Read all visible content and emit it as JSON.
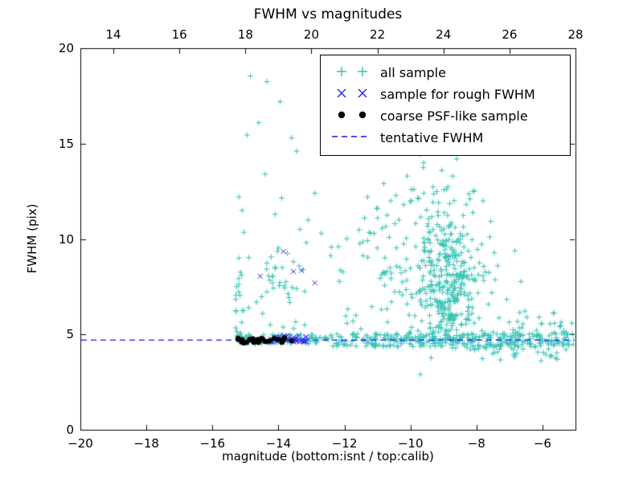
{
  "chart_data": {
    "type": "scatter",
    "title": "FWHM vs magnitudes",
    "xlabel": "magnitude (bottom:isnt / top:calib)",
    "ylabel": "FWHM (pix)",
    "xlim": [
      -20,
      -5
    ],
    "ylim": [
      0,
      20
    ],
    "x_ticks": [
      -20,
      -18,
      -16,
      -14,
      -12,
      -10,
      -8,
      -6
    ],
    "y_ticks": [
      0,
      5,
      10,
      15,
      20
    ],
    "top_axis": {
      "lim": [
        13,
        28
      ],
      "ticks": [
        14,
        16,
        18,
        20,
        22,
        24,
        26,
        28
      ]
    },
    "grid": false,
    "legend_position": "upper-right",
    "tentative_fwhm": 4.7,
    "colors": {
      "all_sample": "#35c2b4",
      "rough_fwhm": "#2222ee",
      "psf_like": "#000000",
      "tentative_line": "#1515ee",
      "axes": "#000000"
    },
    "legend": [
      {
        "label": "all sample",
        "marker": "plus",
        "color": "#35c2b4"
      },
      {
        "label": "sample for rough FWHM",
        "marker": "x",
        "color": "#2222ee"
      },
      {
        "label": "coarse PSF-like sample",
        "marker": "dot",
        "color": "#000000"
      },
      {
        "label": "tentative FWHM",
        "marker": "dashed-line",
        "color": "#1515ee"
      }
    ],
    "series": [
      {
        "name": "all sample",
        "marker": "plus",
        "color": "#35c2b4",
        "clusters": [
          {
            "kind": "band",
            "x": [
              -15.3,
              -15.05
            ],
            "y": [
              4.6,
              8.4
            ],
            "n": 22,
            "seed": 101
          },
          {
            "kind": "gauss",
            "cx": -13.9,
            "cy": 7.3,
            "sx": 0.55,
            "sy": 1.5,
            "n": 42,
            "ymin": 5.0,
            "seed": 102
          },
          {
            "kind": "band",
            "x": [
              -15.25,
              -12.45
            ],
            "y": [
              4.5,
              5.0
            ],
            "n": 75,
            "seed": 103
          },
          {
            "kind": "band",
            "x": [
              -12.5,
              -5.05
            ],
            "y": [
              4.35,
              5.05
            ],
            "n": 250,
            "seed": 104
          },
          {
            "kind": "gauss",
            "cx": -7.2,
            "cy": 4.7,
            "sx": 1.15,
            "sy": 0.5,
            "n": 90,
            "ymin": 3.3,
            "ymax": 6.6,
            "seed": 105
          },
          {
            "kind": "gauss",
            "cx": -8.85,
            "cy": 7.6,
            "sx": 0.5,
            "sy": 2.1,
            "n": 300,
            "ymin": 4.6,
            "xmax": -5.2,
            "seed": 106
          },
          {
            "kind": "gauss",
            "cx": -9.2,
            "cy": 9.0,
            "sx": 1.0,
            "sy": 2.5,
            "n": 110,
            "ymin": 4.7,
            "seed": 107
          },
          {
            "kind": "band",
            "x": [
              -11.1,
              -9.9
            ],
            "y": [
              4.9,
              13.2
            ],
            "n": 26,
            "seed": 108
          },
          {
            "kind": "band",
            "x": [
              -12.5,
              -11.1
            ],
            "y": [
              5.0,
              11.5
            ],
            "n": 18,
            "seed": 109
          },
          {
            "kind": "band",
            "x": [
              -7.0,
              -5.1
            ],
            "y": [
              3.6,
              6.3
            ],
            "n": 30,
            "seed": 110
          }
        ],
        "points": [
          [
            -15.2,
            9.0
          ],
          [
            -15.05,
            10.35
          ],
          [
            -15.1,
            11.5
          ],
          [
            -15.2,
            12.2
          ],
          [
            -14.95,
            15.45
          ],
          [
            -14.85,
            18.55
          ],
          [
            -14.35,
            18.25
          ],
          [
            -14.6,
            16.1
          ],
          [
            -14.4,
            13.4
          ],
          [
            -13.95,
            17.2
          ],
          [
            -13.6,
            15.3
          ],
          [
            -13.45,
            14.6
          ],
          [
            -12.9,
            12.4
          ],
          [
            -13.1,
            11.0
          ],
          [
            -12.7,
            10.3
          ],
          [
            -13.35,
            10.5
          ],
          [
            -13.9,
            12.15
          ],
          [
            -14.1,
            11.3
          ],
          [
            -12.35,
            14.9
          ],
          [
            -9.0,
            15.8
          ],
          [
            -9.3,
            14.9
          ],
          [
            -8.6,
            14.2
          ],
          [
            -9.6,
            14.0
          ],
          [
            -10.1,
            13.3
          ],
          [
            -8.2,
            12.1
          ],
          [
            -7.8,
            12.0
          ],
          [
            -9.05,
            13.6
          ],
          [
            -9.9,
            12.6
          ],
          [
            -10.35,
            11.0
          ],
          [
            -10.6,
            12.0
          ],
          [
            -11.3,
            12.2
          ],
          [
            -9.7,
            2.9
          ],
          [
            -5.55,
            3.7
          ],
          [
            -5.2,
            4.45
          ],
          [
            -6.1,
            5.9
          ],
          [
            -5.9,
            3.95
          ]
        ]
      },
      {
        "name": "sample for rough FWHM",
        "marker": "x",
        "color": "#2222ee",
        "clusters": [
          {
            "kind": "band",
            "x": [
              -14.25,
              -13.05
            ],
            "y": [
              4.55,
              4.95
            ],
            "n": 44,
            "seed": 201
          }
        ],
        "points": [
          [
            -14.55,
            8.05
          ],
          [
            -13.85,
            9.35
          ],
          [
            -13.55,
            8.3
          ],
          [
            -13.3,
            8.35
          ],
          [
            -12.9,
            7.7
          ]
        ]
      },
      {
        "name": "coarse PSF-like sample",
        "marker": "dot",
        "color": "#000000",
        "clusters": [
          {
            "kind": "band",
            "x": [
              -15.25,
              -13.45
            ],
            "y": [
              4.55,
              4.82
            ],
            "n": 26,
            "seed": 301
          }
        ],
        "points": []
      }
    ]
  }
}
